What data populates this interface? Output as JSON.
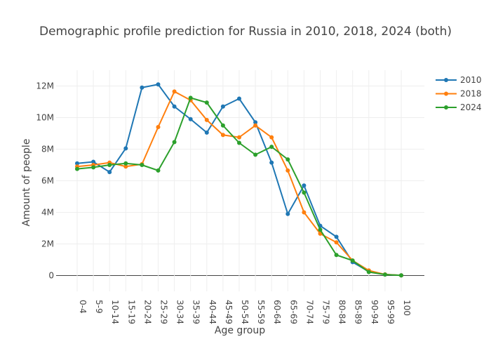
{
  "chart_data": {
    "type": "line",
    "title": "Demographic profile prediction for Russia in 2010, 2018, 2024 (both)",
    "xlabel": "Age group",
    "ylabel": "Amount of people",
    "categories": [
      "0-4",
      "5-9",
      "10-14",
      "15-19",
      "20-24",
      "25-29",
      "30-34",
      "35-39",
      "40-44",
      "45-49",
      "50-54",
      "55-59",
      "60-64",
      "65-69",
      "70-74",
      "75-79",
      "80-84",
      "85-89",
      "90-94",
      "95-99",
      "100"
    ],
    "ylim": [
      -1000000,
      13000000
    ],
    "yticks": [
      0,
      2000000,
      4000000,
      6000000,
      8000000,
      10000000,
      12000000
    ],
    "ytick_labels": [
      "0",
      "2M",
      "4M",
      "6M",
      "8M",
      "10M",
      "12M"
    ],
    "grid": true,
    "legend_position": "top-right",
    "series": [
      {
        "name": "2010",
        "color": "#1f77b4",
        "values": [
          7100000,
          7200000,
          6550000,
          8050000,
          11900000,
          12100000,
          10700000,
          9900000,
          9050000,
          10700000,
          11200000,
          9700000,
          7150000,
          3900000,
          5700000,
          3150000,
          2450000,
          850000,
          250000,
          60000,
          10000
        ]
      },
      {
        "name": "2018",
        "color": "#ff7f0e",
        "values": [
          6900000,
          7000000,
          7150000,
          6900000,
          7050000,
          9400000,
          11650000,
          11100000,
          9850000,
          8900000,
          8750000,
          9500000,
          8750000,
          6650000,
          4000000,
          2650000,
          2100000,
          950000,
          320000,
          70000,
          10000
        ]
      },
      {
        "name": "2024",
        "color": "#2ca02c",
        "values": [
          6750000,
          6850000,
          7000000,
          7100000,
          7000000,
          6650000,
          8450000,
          11250000,
          10950000,
          9500000,
          8400000,
          7650000,
          8150000,
          7350000,
          5250000,
          2900000,
          1300000,
          950000,
          220000,
          60000,
          10000
        ]
      }
    ]
  }
}
